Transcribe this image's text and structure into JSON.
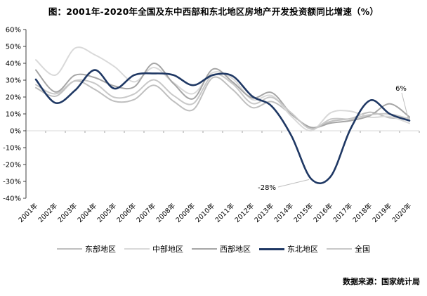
{
  "title": "图：2001年-2020年全国及东中西部和东北地区房地产开发投资额同比增速（%）",
  "source": "数据来源：国家统计局",
  "chart_data": {
    "type": "line",
    "title": "图：2001年-2020年全国及东中西部和东北地区房地产开发投资额同比增速（%）",
    "xlabel": "",
    "ylabel": "",
    "ylim": [
      -40,
      60
    ],
    "y_unit": "%",
    "grid": "zero-line-only",
    "legend_position": "bottom",
    "line_style": "smooth",
    "y_ticks": [
      "60%",
      "50%",
      "40%",
      "30%",
      "20%",
      "10%",
      "0%",
      "-10%",
      "-20%",
      "-30%",
      "-40%"
    ],
    "y_tick_values": [
      60,
      50,
      40,
      30,
      20,
      10,
      0,
      -10,
      -20,
      -30,
      -40
    ],
    "categories": [
      "2001年",
      "2002年",
      "2003年",
      "2004年",
      "2005年",
      "2006年",
      "2007年",
      "2008年",
      "2009年",
      "2010年",
      "2011年",
      "2012年",
      "2013年",
      "2014年",
      "2015年",
      "2016年",
      "2017年",
      "2018年",
      "2019年",
      "2020年"
    ],
    "series": [
      {
        "key": "east",
        "name": "东部地区",
        "color": "#bfbfbf",
        "stroke_width": 2,
        "values": [
          25.5,
          20.5,
          29.5,
          24.5,
          17.5,
          18.5,
          27.0,
          17.5,
          12.5,
          31.5,
          24.5,
          13.8,
          17.3,
          9.6,
          1.8,
          5.6,
          7.2,
          11.0,
          7.7,
          7.6
        ]
      },
      {
        "key": "central",
        "name": "中部地区",
        "color": "#d9d9d9",
        "stroke_width": 2,
        "values": [
          42.0,
          33.0,
          49.0,
          45.0,
          38.0,
          29.0,
          37.5,
          28.5,
          22.0,
          34.5,
          31.0,
          18.5,
          20.8,
          8.5,
          0.0,
          10.7,
          11.6,
          8.0,
          8.4,
          4.4
        ]
      },
      {
        "key": "west",
        "name": "西部地区",
        "color": "#a6a6a6",
        "stroke_width": 2,
        "values": [
          36.0,
          23.0,
          33.0,
          31.5,
          26.5,
          26.0,
          40.0,
          28.0,
          19.0,
          36.5,
          29.0,
          19.5,
          22.6,
          10.0,
          2.0,
          4.6,
          6.0,
          9.0,
          16.0,
          8.2
        ]
      },
      {
        "key": "northeast",
        "name": "东北地区",
        "color": "#1f3864",
        "stroke_width": 2.6,
        "values": [
          30.4,
          16.5,
          24.0,
          36.0,
          25.0,
          33.0,
          34.0,
          33.0,
          27.0,
          33.0,
          32.5,
          20.5,
          14.5,
          -3.0,
          -28.5,
          -27.0,
          1.0,
          18.0,
          10.0,
          6.0
        ]
      },
      {
        "key": "national",
        "name": "全国",
        "color": "#c8c8c8",
        "stroke_width": 2,
        "values": [
          27.3,
          21.9,
          29.7,
          28.1,
          19.8,
          21.8,
          30.2,
          20.9,
          16.1,
          33.2,
          27.9,
          16.2,
          19.8,
          10.5,
          1.0,
          6.9,
          7.0,
          9.5,
          9.9,
          7.0
        ]
      }
    ],
    "annotations": [
      {
        "text": "6%",
        "series": "northeast",
        "category": "2020年",
        "value": 6
      },
      {
        "text": "-28%",
        "series": "northeast",
        "category": "2015年",
        "value": -28.5
      }
    ]
  }
}
